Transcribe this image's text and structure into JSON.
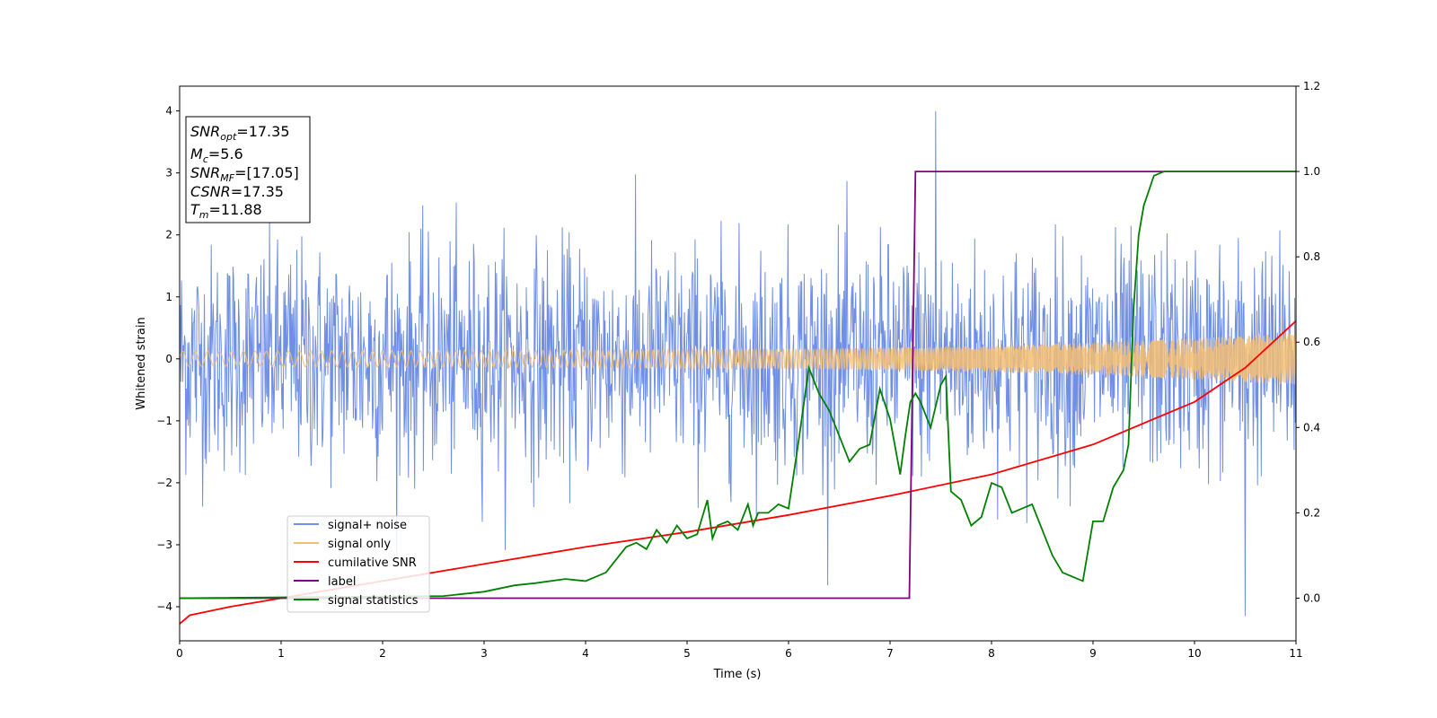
{
  "chart_data": {
    "type": "line",
    "xlabel": "Time (s)",
    "ylabel": "Whitened strain",
    "xlim": [
      0,
      11
    ],
    "ylim_left": [
      -4.55,
      4.4
    ],
    "ylim_right": [
      -0.1,
      1.2
    ],
    "x_ticks": [
      "0",
      "1",
      "2",
      "3",
      "4",
      "5",
      "6",
      "7",
      "8",
      "9",
      "10",
      "11"
    ],
    "y_ticks_left": [
      "4",
      "3",
      "2",
      "1",
      "0",
      "−1",
      "−2",
      "−3",
      "−4"
    ],
    "y_ticks_right": [
      "1.2",
      "1.0",
      "0.8",
      "0.6",
      "0.4",
      "0.2",
      "0.0"
    ],
    "legend_position": "lower-left",
    "colors": {
      "noise": "#6f8fe6",
      "signal": "#f5be72",
      "snr": "#ff0000",
      "label": "#800080",
      "stat": "#008000"
    },
    "annotation": {
      "snr_opt": {
        "base": "SNR",
        "sub": "opt",
        "value": "=17.35"
      },
      "mc": {
        "base": "M",
        "sub": "c",
        "value": "=5.6"
      },
      "snr_mf": {
        "base": "SNR",
        "sub": "MF",
        "value": "=[17.05]"
      },
      "csnr": {
        "base": "CSNR",
        "value": "=17.35"
      },
      "tm": {
        "base": "T",
        "sub": "m",
        "value": "=11.88"
      }
    },
    "noise_profile": {
      "typical_band": [
        -2.0,
        2.0
      ],
      "peak_max": 4.0,
      "peak_min": -4.15,
      "samples": 1800
    },
    "series": [
      {
        "name": "signal+ noise",
        "axis": "left"
      },
      {
        "name": "signal only",
        "axis": "left",
        "envelope": {
          "x": [
            0,
            2,
            4,
            6,
            7,
            8,
            9,
            10,
            11
          ],
          "amp": [
            0.12,
            0.13,
            0.14,
            0.16,
            0.18,
            0.21,
            0.26,
            0.33,
            0.42
          ]
        }
      },
      {
        "name": "cumilative SNR",
        "axis": "right",
        "x": [
          0,
          0.1,
          0.3,
          0.5,
          1,
          2,
          3,
          4,
          5,
          6,
          7,
          8,
          9,
          10,
          10.5,
          11
        ],
        "y": [
          -0.06,
          -0.04,
          -0.03,
          -0.02,
          0.0,
          0.04,
          0.08,
          0.12,
          0.155,
          0.195,
          0.24,
          0.29,
          0.36,
          0.46,
          0.54,
          0.65
        ]
      },
      {
        "name": "label",
        "axis": "right",
        "x": [
          0,
          7.19,
          7.25,
          11
        ],
        "y": [
          0,
          0,
          1,
          1
        ]
      },
      {
        "name": "signal statistics",
        "axis": "right",
        "x": [
          0,
          2.6,
          3.0,
          3.3,
          3.5,
          3.8,
          4.0,
          4.2,
          4.4,
          4.5,
          4.6,
          4.7,
          4.8,
          4.9,
          5.0,
          5.1,
          5.2,
          5.25,
          5.3,
          5.4,
          5.5,
          5.6,
          5.65,
          5.7,
          5.8,
          5.9,
          6.0,
          6.1,
          6.2,
          6.3,
          6.4,
          6.5,
          6.6,
          6.7,
          6.8,
          6.9,
          7.0,
          7.1,
          7.15,
          7.2,
          7.25,
          7.3,
          7.4,
          7.5,
          7.55,
          7.6,
          7.7,
          7.8,
          7.9,
          8.0,
          8.1,
          8.2,
          8.4,
          8.5,
          8.6,
          8.7,
          8.8,
          8.9,
          9.0,
          9.1,
          9.2,
          9.3,
          9.35,
          9.4,
          9.45,
          9.5,
          9.6,
          9.7,
          9.8,
          9.9,
          10.0,
          10.5,
          11.0
        ],
        "y": [
          0.0,
          0.005,
          0.015,
          0.03,
          0.035,
          0.045,
          0.04,
          0.06,
          0.12,
          0.13,
          0.115,
          0.16,
          0.13,
          0.17,
          0.14,
          0.15,
          0.23,
          0.14,
          0.17,
          0.18,
          0.16,
          0.22,
          0.17,
          0.2,
          0.2,
          0.22,
          0.21,
          0.37,
          0.54,
          0.48,
          0.44,
          0.38,
          0.32,
          0.35,
          0.36,
          0.49,
          0.42,
          0.29,
          0.38,
          0.46,
          0.48,
          0.46,
          0.4,
          0.5,
          0.52,
          0.25,
          0.23,
          0.17,
          0.19,
          0.27,
          0.26,
          0.2,
          0.22,
          0.16,
          0.1,
          0.06,
          0.05,
          0.04,
          0.18,
          0.18,
          0.26,
          0.3,
          0.36,
          0.68,
          0.85,
          0.92,
          0.99,
          1.0,
          1.0,
          1.0,
          1.0,
          1.0,
          1.0
        ]
      }
    ]
  }
}
